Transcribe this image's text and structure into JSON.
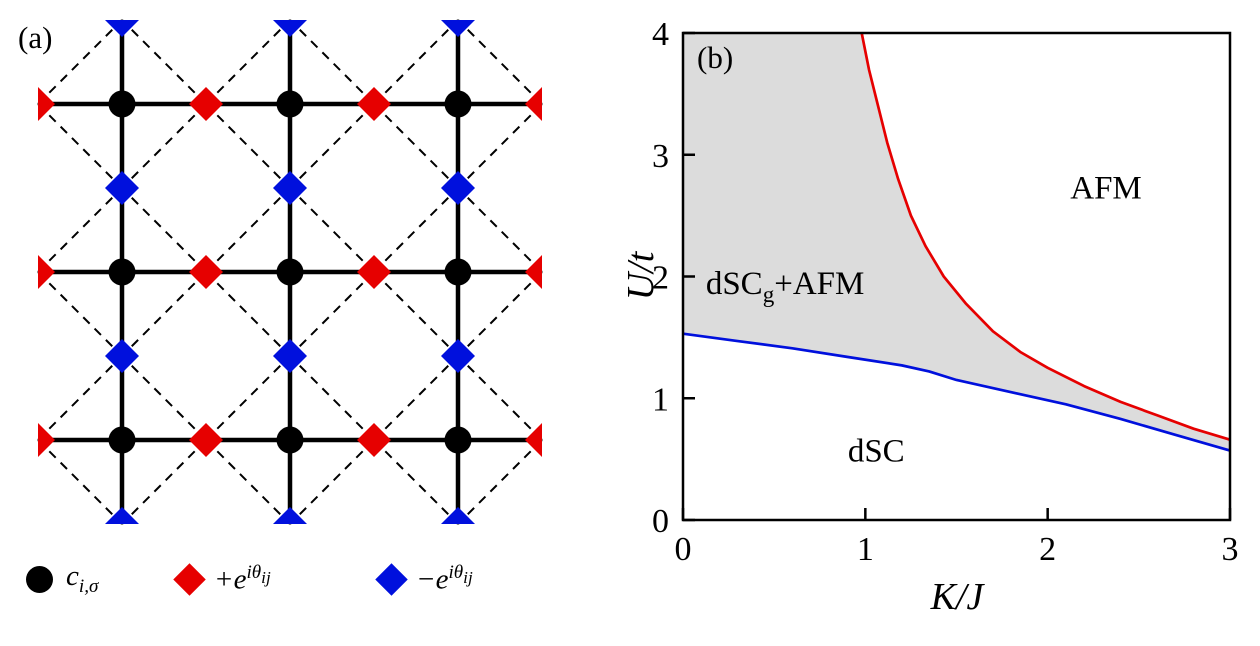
{
  "figure": {
    "panel_a_label": "(a)",
    "panel_b_label": "(b)"
  },
  "colors": {
    "red": "#e60000",
    "blue": "#0010dd",
    "black": "#000000",
    "gray": "#dcdcdc"
  },
  "panel_a": {
    "legend": {
      "site": {
        "symbol": "black-circle",
        "base": "c",
        "sub": "i,σ"
      },
      "plus_bond": {
        "symbol": "red-diamond",
        "sign": "+",
        "base": "e",
        "sup_head": "iθ",
        "sup_sub": "ij"
      },
      "minus_bond": {
        "symbol": "blue-diamond",
        "sign": "−",
        "base": "e",
        "sup_head": "iθ",
        "sup_sub": "ij"
      }
    }
  },
  "chart_data": {
    "type": "line",
    "title": "",
    "xlabel": "K/J",
    "ylabel": "U/t",
    "xlim": [
      0,
      3
    ],
    "ylim": [
      0,
      4
    ],
    "xticks": [
      "0",
      "1",
      "2",
      "3"
    ],
    "yticks": [
      "0",
      "1",
      "2",
      "3",
      "4"
    ],
    "grid": false,
    "legend_position": "none",
    "series": [
      {
        "name": "AFM-boundary",
        "color": "#e60000",
        "points": [
          [
            0.98,
            4.0
          ],
          [
            1.02,
            3.7
          ],
          [
            1.07,
            3.4
          ],
          [
            1.12,
            3.1
          ],
          [
            1.18,
            2.8
          ],
          [
            1.25,
            2.5
          ],
          [
            1.33,
            2.25
          ],
          [
            1.43,
            2.0
          ],
          [
            1.55,
            1.78
          ],
          [
            1.7,
            1.55
          ],
          [
            1.85,
            1.38
          ],
          [
            2.0,
            1.25
          ],
          [
            2.2,
            1.1
          ],
          [
            2.4,
            0.97
          ],
          [
            2.6,
            0.86
          ],
          [
            2.8,
            0.75
          ],
          [
            3.0,
            0.66
          ]
        ]
      },
      {
        "name": "dSC-boundary",
        "color": "#0010dd",
        "points": [
          [
            0.0,
            1.53
          ],
          [
            0.3,
            1.47
          ],
          [
            0.6,
            1.41
          ],
          [
            0.9,
            1.34
          ],
          [
            1.2,
            1.27
          ],
          [
            1.35,
            1.22
          ],
          [
            1.5,
            1.15
          ],
          [
            1.8,
            1.05
          ],
          [
            2.1,
            0.95
          ],
          [
            2.4,
            0.83
          ],
          [
            2.7,
            0.7
          ],
          [
            3.0,
            0.57
          ]
        ]
      }
    ],
    "shaded_region": {
      "color": "#dcdcdc",
      "between": [
        "dSC-boundary",
        "AFM-boundary"
      ],
      "label": "dSC_g+AFM"
    },
    "region_labels": [
      {
        "text": "AFM",
        "x": 2.32,
        "y": 2.72
      },
      {
        "text": "dSC_g+AFM",
        "x": 0.56,
        "y": 1.91,
        "parts": {
          "pre": "dSC",
          "sub": "g",
          "post": "+AFM"
        }
      },
      {
        "text": "dSC",
        "x": 1.06,
        "y": 0.56
      }
    ]
  }
}
